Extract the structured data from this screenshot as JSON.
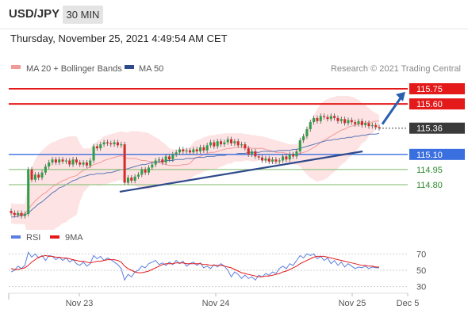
{
  "header": {
    "symbol": "USD/JPY",
    "timeframe": "30 MIN"
  },
  "datetime": "Thursday, November 25, 2021 4:49:54 AM CET",
  "legend": {
    "bb_label": "MA 20 + Bollinger Bands",
    "ma50_label": "MA 50",
    "credit": "Research © 2021 Trading Central"
  },
  "rsi_legend": {
    "rsi_label": "RSI",
    "ma_label": "9MA"
  },
  "colors": {
    "resistance": "#e41a1a",
    "support": "#3a6fe0",
    "minor_level": "#7bb86a",
    "bands_fill": "#fde3e3",
    "ma20": "#f29a9a",
    "ma50": "#5a78b8",
    "trendline": "#2f4a8a",
    "arrow": "#2a5fb0",
    "candle_up": "#2e9e49",
    "candle_down": "#d42b2b",
    "rsi_line": "#5a7fe0",
    "rsi_ma": "#e41a1a",
    "current_price_bg": "#3a3a3a"
  },
  "chart_data": [
    {
      "type": "candlestick",
      "title": "USD/JPY",
      "timeframe": "30 MIN",
      "x_ticks": [
        "Nov 23",
        "Nov 24",
        "Nov 25",
        "Dec 5"
      ],
      "ylim": [
        114.4,
        115.86
      ],
      "levels": [
        {
          "value": 115.75,
          "label": "115.75",
          "kind": "resistance"
        },
        {
          "value": 115.6,
          "label": "115.60",
          "kind": "resistance"
        },
        {
          "value": 115.36,
          "label": "115.36",
          "kind": "current"
        },
        {
          "value": 115.1,
          "label": "115.10",
          "kind": "support"
        },
        {
          "value": 114.95,
          "label": "114.95",
          "kind": "minor"
        },
        {
          "value": 114.8,
          "label": "114.80",
          "kind": "minor"
        }
      ],
      "trendline": {
        "x": [
          0.295,
          0.955
        ],
        "y": [
          114.73,
          115.13
        ]
      },
      "close": [
        114.52,
        114.5,
        114.52,
        114.49,
        114.51,
        114.95,
        114.85,
        114.9,
        114.87,
        114.92,
        114.98,
        115.02,
        115.05,
        115.02,
        115.05,
        115.03,
        115.04,
        115.0,
        115.05,
        115.02,
        115.0,
        115.02,
        114.99,
        115.04,
        115.18,
        115.16,
        115.2,
        115.22,
        115.21,
        115.2,
        115.22,
        115.19,
        115.2,
        114.82,
        114.87,
        114.84,
        114.88,
        114.9,
        114.95,
        114.92,
        114.97,
        115.0,
        115.04,
        115.05,
        115.02,
        115.08,
        115.05,
        115.1,
        115.12,
        115.15,
        115.13,
        115.14,
        115.12,
        115.15,
        115.13,
        115.17,
        115.14,
        115.19,
        115.22,
        115.18,
        115.23,
        115.2,
        115.22,
        115.25,
        115.21,
        115.23,
        115.19,
        115.2,
        115.16,
        115.1,
        115.13,
        115.08,
        115.07,
        115.04,
        115.06,
        115.03,
        115.05,
        115.03,
        115.04,
        115.08,
        115.05,
        115.1,
        115.08,
        115.13,
        115.24,
        115.28,
        115.35,
        115.42,
        115.46,
        115.43,
        115.48,
        115.47,
        115.45,
        115.48,
        115.46,
        115.43,
        115.45,
        115.41,
        115.44,
        115.42,
        115.4,
        115.43,
        115.39,
        115.41,
        115.38,
        115.39,
        115.37,
        115.36
      ],
      "ma20": [
        114.52,
        114.51,
        114.51,
        114.51,
        114.51,
        114.56,
        114.6,
        114.64,
        114.67,
        114.7,
        114.72,
        114.75,
        114.78,
        114.8,
        114.82,
        114.84,
        114.85,
        114.87,
        114.88,
        114.89,
        114.92,
        114.94,
        114.96,
        114.98,
        115.0,
        115.01,
        115.02,
        115.04,
        115.05,
        115.06,
        115.07,
        115.08,
        115.09,
        115.07,
        115.06,
        115.06,
        115.06,
        115.05,
        115.04,
        115.04,
        115.03,
        115.03,
        115.02,
        115.02,
        115.01,
        115.0,
        114.99,
        114.99,
        114.99,
        114.99,
        115.0,
        115.0,
        115.01,
        115.05,
        115.07,
        115.08,
        115.1,
        115.11,
        115.12,
        115.12,
        115.13,
        115.14,
        115.15,
        115.16,
        115.16,
        115.17,
        115.17,
        115.17,
        115.17,
        115.17,
        115.16,
        115.16,
        115.16,
        115.16,
        115.15,
        115.14,
        115.13,
        115.12,
        115.12,
        115.12,
        115.11,
        115.1,
        115.1,
        115.1,
        115.11,
        115.12,
        115.13,
        115.15,
        115.17,
        115.19,
        115.22,
        115.24,
        115.26,
        115.28,
        115.3,
        115.32,
        115.34,
        115.35,
        115.37,
        115.38,
        115.39,
        115.4,
        115.41,
        115.41,
        115.42,
        115.42,
        115.43,
        115.43
      ],
      "bb_upper": [
        114.62,
        114.61,
        114.61,
        114.61,
        114.61,
        114.86,
        114.97,
        115.05,
        115.1,
        115.14,
        115.17,
        115.2,
        115.22,
        115.23,
        115.25,
        115.26,
        115.27,
        115.28,
        115.28,
        115.28,
        115.21,
        115.16,
        115.16,
        115.16,
        115.2,
        115.23,
        115.25,
        115.28,
        115.29,
        115.3,
        115.31,
        115.32,
        115.33,
        115.32,
        115.32,
        115.33,
        115.33,
        115.33,
        115.32,
        115.32,
        115.31,
        115.29,
        115.27,
        115.25,
        115.22,
        115.2,
        115.16,
        115.15,
        115.15,
        115.15,
        115.15,
        115.16,
        115.17,
        115.22,
        115.24,
        115.25,
        115.27,
        115.28,
        115.29,
        115.29,
        115.3,
        115.3,
        115.31,
        115.31,
        115.31,
        115.31,
        115.31,
        115.31,
        115.3,
        115.3,
        115.29,
        115.29,
        115.28,
        115.28,
        115.27,
        115.26,
        115.25,
        115.24,
        115.23,
        115.22,
        115.21,
        115.2,
        115.2,
        115.2,
        115.24,
        115.3,
        115.36,
        115.43,
        115.49,
        115.55,
        115.6,
        115.63,
        115.65,
        115.66,
        115.67,
        115.68,
        115.68,
        115.68,
        115.68,
        115.67,
        115.66,
        115.64,
        115.61,
        115.59,
        115.56,
        115.53,
        115.51,
        115.49
      ],
      "bb_lower": [
        114.42,
        114.41,
        114.41,
        114.41,
        114.41,
        114.26,
        114.23,
        114.23,
        114.24,
        114.26,
        114.27,
        114.3,
        114.34,
        114.37,
        114.39,
        114.42,
        114.43,
        114.46,
        114.48,
        114.5,
        114.63,
        114.72,
        114.76,
        114.8,
        114.8,
        114.79,
        114.79,
        114.8,
        114.81,
        114.82,
        114.83,
        114.84,
        114.85,
        114.82,
        114.8,
        114.79,
        114.79,
        114.77,
        114.76,
        114.76,
        114.75,
        114.77,
        114.77,
        114.79,
        114.8,
        114.8,
        114.82,
        114.83,
        114.83,
        114.83,
        114.85,
        114.84,
        114.85,
        114.88,
        114.9,
        114.91,
        114.93,
        114.94,
        114.95,
        114.95,
        114.96,
        114.98,
        114.99,
        115.01,
        115.01,
        115.03,
        115.03,
        115.03,
        115.04,
        115.04,
        115.03,
        115.03,
        115.04,
        115.04,
        115.03,
        115.02,
        115.01,
        115.0,
        115.01,
        115.02,
        115.01,
        115.0,
        115.0,
        115.0,
        114.98,
        114.94,
        114.9,
        114.87,
        114.85,
        114.83,
        114.84,
        114.85,
        114.87,
        114.9,
        114.93,
        114.96,
        115.0,
        115.02,
        115.06,
        115.09,
        115.12,
        115.16,
        115.21,
        115.23,
        115.28,
        115.31,
        115.35,
        115.37
      ],
      "ma50": [
        114.48,
        114.48,
        114.49,
        114.5,
        114.5,
        114.52,
        114.55,
        114.58,
        114.61,
        114.63,
        114.66,
        114.69,
        114.72,
        114.74,
        114.77,
        114.78,
        114.8,
        114.82,
        114.84,
        114.85,
        114.87,
        114.88,
        114.89,
        114.9,
        114.9,
        114.91,
        114.91,
        114.91,
        114.92,
        114.92,
        114.93,
        114.94,
        114.95,
        114.95,
        114.96,
        114.97,
        114.98,
        114.99,
        115.0,
        115.0,
        115.01,
        115.02,
        115.02,
        115.03,
        115.03,
        115.04,
        115.04,
        115.04,
        115.05,
        115.05,
        115.05,
        115.06,
        115.06,
        115.06,
        115.07,
        115.07,
        115.07,
        115.08,
        115.08,
        115.08,
        115.09,
        115.09,
        115.09,
        115.1,
        115.1,
        115.1,
        115.11,
        115.11,
        115.11,
        115.12,
        115.12,
        115.12,
        115.12,
        115.13,
        115.13,
        115.13,
        115.13,
        115.13,
        115.14,
        115.14,
        115.14,
        115.14,
        115.15,
        115.15,
        115.16,
        115.17,
        115.18,
        115.19,
        115.2,
        115.21,
        115.22,
        115.23,
        115.24,
        115.24,
        115.25,
        115.25,
        115.26,
        115.26,
        115.27,
        115.27,
        115.28,
        115.28,
        115.29,
        115.29,
        115.3,
        115.3,
        115.3,
        115.31
      ]
    },
    {
      "type": "line",
      "title": "RSI",
      "ylim": [
        20,
        80
      ],
      "y_ticks": [
        70,
        50,
        30
      ],
      "series": [
        {
          "name": "RSI",
          "values": [
            48,
            50,
            55,
            52,
            56,
            72,
            66,
            70,
            65,
            68,
            62,
            68,
            67,
            63,
            66,
            62,
            65,
            60,
            63,
            58,
            56,
            60,
            55,
            58,
            68,
            64,
            67,
            62,
            65,
            63,
            60,
            57,
            52,
            38,
            45,
            42,
            48,
            50,
            55,
            53,
            58,
            60,
            62,
            57,
            59,
            56,
            60,
            57,
            62,
            58,
            61,
            55,
            58,
            60,
            56,
            59,
            53,
            55,
            52,
            57,
            54,
            58,
            55,
            50,
            42,
            48,
            45,
            40,
            44,
            40,
            42,
            38,
            44,
            42,
            46,
            44,
            48,
            46,
            52,
            55,
            52,
            58,
            56,
            62,
            68,
            65,
            70,
            68,
            70,
            64,
            67,
            62,
            65,
            58,
            62,
            56,
            60,
            54,
            58,
            55,
            52,
            54,
            53,
            55,
            52,
            54,
            53,
            53
          ]
        },
        {
          "name": "9MA",
          "values": [
            52,
            51,
            51,
            52,
            53,
            56,
            60,
            63,
            66,
            67,
            68,
            67,
            67,
            66,
            66,
            65,
            65,
            64,
            63,
            62,
            61,
            61,
            60,
            59,
            60,
            61,
            61,
            62,
            63,
            63,
            63,
            62,
            60,
            55,
            52,
            50,
            48,
            47,
            47,
            48,
            49,
            51,
            53,
            55,
            57,
            58,
            58,
            58,
            59,
            59,
            59,
            58,
            58,
            58,
            58,
            58,
            57,
            57,
            56,
            56,
            56,
            56,
            55,
            54,
            53,
            51,
            49,
            47,
            46,
            45,
            44,
            43,
            42,
            42,
            43,
            43,
            44,
            45,
            46,
            48,
            49,
            51,
            53,
            55,
            58,
            60,
            62,
            64,
            66,
            67,
            67,
            67,
            66,
            65,
            64,
            63,
            62,
            61,
            60,
            59,
            58,
            57,
            56,
            56,
            55,
            55,
            54,
            54
          ]
        }
      ]
    }
  ]
}
